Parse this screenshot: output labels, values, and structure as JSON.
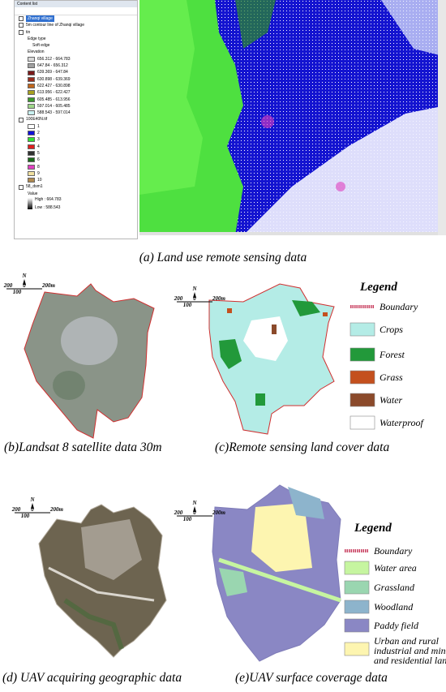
{
  "panel_a": {
    "toc": {
      "title": "Content list",
      "layers": [
        {
          "name": "Zhanqi village"
        },
        {
          "name": "5m contour line of Zhanqi village"
        },
        {
          "name": "tin",
          "sublabels": [
            "Edge type",
            "Soft edge",
            "Elevation"
          ],
          "classes": [
            {
              "label": "656.312 - 664.783",
              "color": "#d9d9d9"
            },
            {
              "label": "647.84 - 656.312",
              "color": "#a0a0a0"
            },
            {
              "label": "639.369 - 647.84",
              "color": "#7a1a1a"
            },
            {
              "label": "630.898 - 639.369",
              "color": "#9b2d1f"
            },
            {
              "label": "622.427 - 630.898",
              "color": "#c0661c"
            },
            {
              "label": "613.956 - 622.427",
              "color": "#a8a020"
            },
            {
              "label": "605.485 - 613.956",
              "color": "#3c9a2e"
            },
            {
              "label": "597.014 - 605.485",
              "color": "#9fd88a"
            },
            {
              "label": "588.543 - 597.014",
              "color": "#c8f0f0"
            }
          ]
        },
        {
          "name": "100E40N.tif",
          "classes": [
            {
              "label": "1",
              "color": "#ffffff"
            },
            {
              "label": "2",
              "color": "#1010d8"
            },
            {
              "label": "3",
              "color": "#30e030"
            },
            {
              "label": "4",
              "color": "#e02020"
            },
            {
              "label": "5",
              "color": "#303030"
            },
            {
              "label": "6",
              "color": "#1a6a1a"
            },
            {
              "label": "8",
              "color": "#e040c0"
            },
            {
              "label": "9",
              "color": "#f0e0a0"
            },
            {
              "label": "10",
              "color": "#b08a50"
            }
          ]
        },
        {
          "name": "58_dsm1",
          "sublabels": [
            "Value"
          ],
          "ramp": [
            "High : 664.783",
            "Low : 588.543"
          ]
        }
      ]
    },
    "caption": "(a) Land use remote sensing data"
  },
  "panel_b": {
    "scale_bar": {
      "north": "N",
      "left": "200",
      "zero": "0",
      "right": "200m",
      "below": "100"
    },
    "caption": "(b)Landsat 8 satellite data 30m"
  },
  "panel_c": {
    "scale_bar": {
      "north": "N",
      "left": "200",
      "zero": "0",
      "right": "200m",
      "below": "100"
    },
    "legend": {
      "title": "Legend",
      "boundary": "Boundary",
      "items": [
        {
          "label": "Crops",
          "color": "#b4ece6"
        },
        {
          "label": "Forest",
          "color": "#22993a"
        },
        {
          "label": "Grass",
          "color": "#c4501e"
        },
        {
          "label": "Water",
          "color": "#8b4a2b"
        },
        {
          "label": "Waterproof",
          "color": "#ffffff"
        }
      ]
    },
    "caption": "(c)Remote sensing land cover data"
  },
  "panel_d": {
    "scale_bar": {
      "north": "N",
      "left": "200",
      "zero": "0",
      "right": "200m",
      "below": "100"
    },
    "caption": "(d) UAV acquiring geographic data"
  },
  "panel_e": {
    "scale_bar": {
      "north": "N",
      "left": "200",
      "zero": "0",
      "right": "200m",
      "below": "100"
    },
    "legend": {
      "title": "Legend",
      "boundary": "Boundary",
      "items": [
        {
          "label": "Water area",
          "color": "#c6f5a0"
        },
        {
          "label": "Grassland",
          "color": "#9ad6b0"
        },
        {
          "label": "Woodland",
          "color": "#8db4cc"
        },
        {
          "label": "Paddy field",
          "color": "#8a87c4"
        },
        {
          "label": [
            "Urban and rural",
            "industrial and mining",
            "and residential land"
          ],
          "color": "#fdf5b0"
        }
      ]
    },
    "caption": "(e)UAV surface coverage data"
  }
}
